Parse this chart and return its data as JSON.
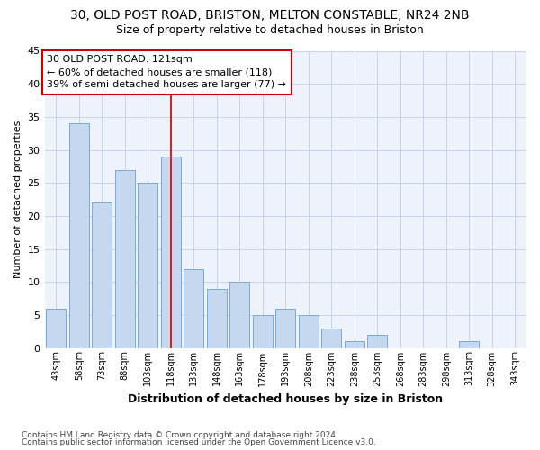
{
  "title1": "30, OLD POST ROAD, BRISTON, MELTON CONSTABLE, NR24 2NB",
  "title2": "Size of property relative to detached houses in Briston",
  "xlabel": "Distribution of detached houses by size in Briston",
  "ylabel": "Number of detached properties",
  "categories": [
    "43sqm",
    "58sqm",
    "73sqm",
    "88sqm",
    "103sqm",
    "118sqm",
    "133sqm",
    "148sqm",
    "163sqm",
    "178sqm",
    "193sqm",
    "208sqm",
    "223sqm",
    "238sqm",
    "253sqm",
    "268sqm",
    "283sqm",
    "298sqm",
    "313sqm",
    "328sqm",
    "343sqm"
  ],
  "values": [
    6,
    34,
    22,
    27,
    25,
    29,
    12,
    9,
    10,
    5,
    6,
    5,
    3,
    1,
    2,
    0,
    0,
    0,
    1,
    0,
    0
  ],
  "bar_color": "#c5d8f0",
  "bar_edge_color": "#7aaad0",
  "vline_index": 5,
  "vline_color": "#cc0000",
  "annotation_line1": "30 OLD POST ROAD: 121sqm",
  "annotation_line2": "← 60% of detached houses are smaller (118)",
  "annotation_line3": "39% of semi-detached houses are larger (77) →",
  "ann_box_edge_color": "#cc0000",
  "ylim_min": 0,
  "ylim_max": 45,
  "yticks": [
    0,
    5,
    10,
    15,
    20,
    25,
    30,
    35,
    40,
    45
  ],
  "footer1": "Contains HM Land Registry data © Crown copyright and database right 2024.",
  "footer2": "Contains public sector information licensed under the Open Government Licence v3.0.",
  "bg_color": "#edf2fb",
  "grid_color": "#c8d4e8"
}
